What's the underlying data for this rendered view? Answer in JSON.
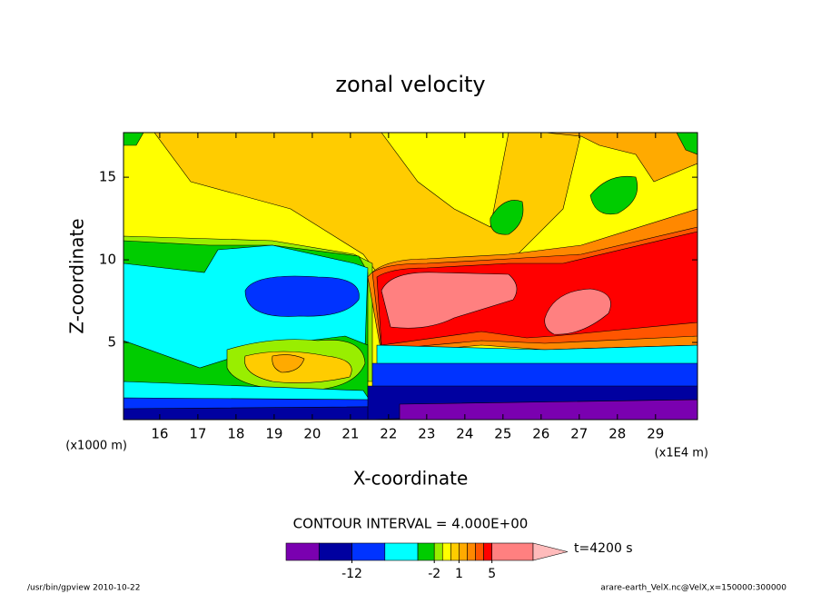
{
  "chart_data": {
    "type": "contour",
    "title": "zonal velocity",
    "xlabel": "X-coordinate",
    "ylabel": "Z-coordinate",
    "xunit": "(x1E4 m)",
    "yunit": "(x1000 m)",
    "xlim": [
      15.05,
      30.1
    ],
    "ylim": [
      0.33,
      17.7
    ],
    "xticks": [
      16,
      17,
      18,
      19,
      20,
      21,
      22,
      23,
      24,
      25,
      26,
      27,
      28,
      29
    ],
    "yticks": [
      5,
      10,
      15
    ],
    "contour_interval": "CONTOUR INTERVAL = 4.000E+00",
    "time_label": "t=4200 s",
    "colorbar": {
      "levels": [
        -20,
        -16,
        -12,
        -8,
        -4,
        -2,
        -1,
        0,
        1,
        2,
        3,
        4,
        5,
        10
      ],
      "ticks": [
        -12,
        -2,
        1,
        5
      ],
      "colors": [
        "#e000b0",
        "#7a00b0",
        "#0000a0",
        "#0033ff",
        "#00ffff",
        "#00cc00",
        "#99ee00",
        "#ffff00",
        "#ffcc00",
        "#ffaa00",
        "#ff8800",
        "#ff5500",
        "#ff0000",
        "#ff8080",
        "#ffbbbb"
      ]
    },
    "footer_left": "/usr/bin/gpview  2010-10-22",
    "footer_right": "arare-earth_VelX.nc@VelX,x=150000:300000"
  }
}
